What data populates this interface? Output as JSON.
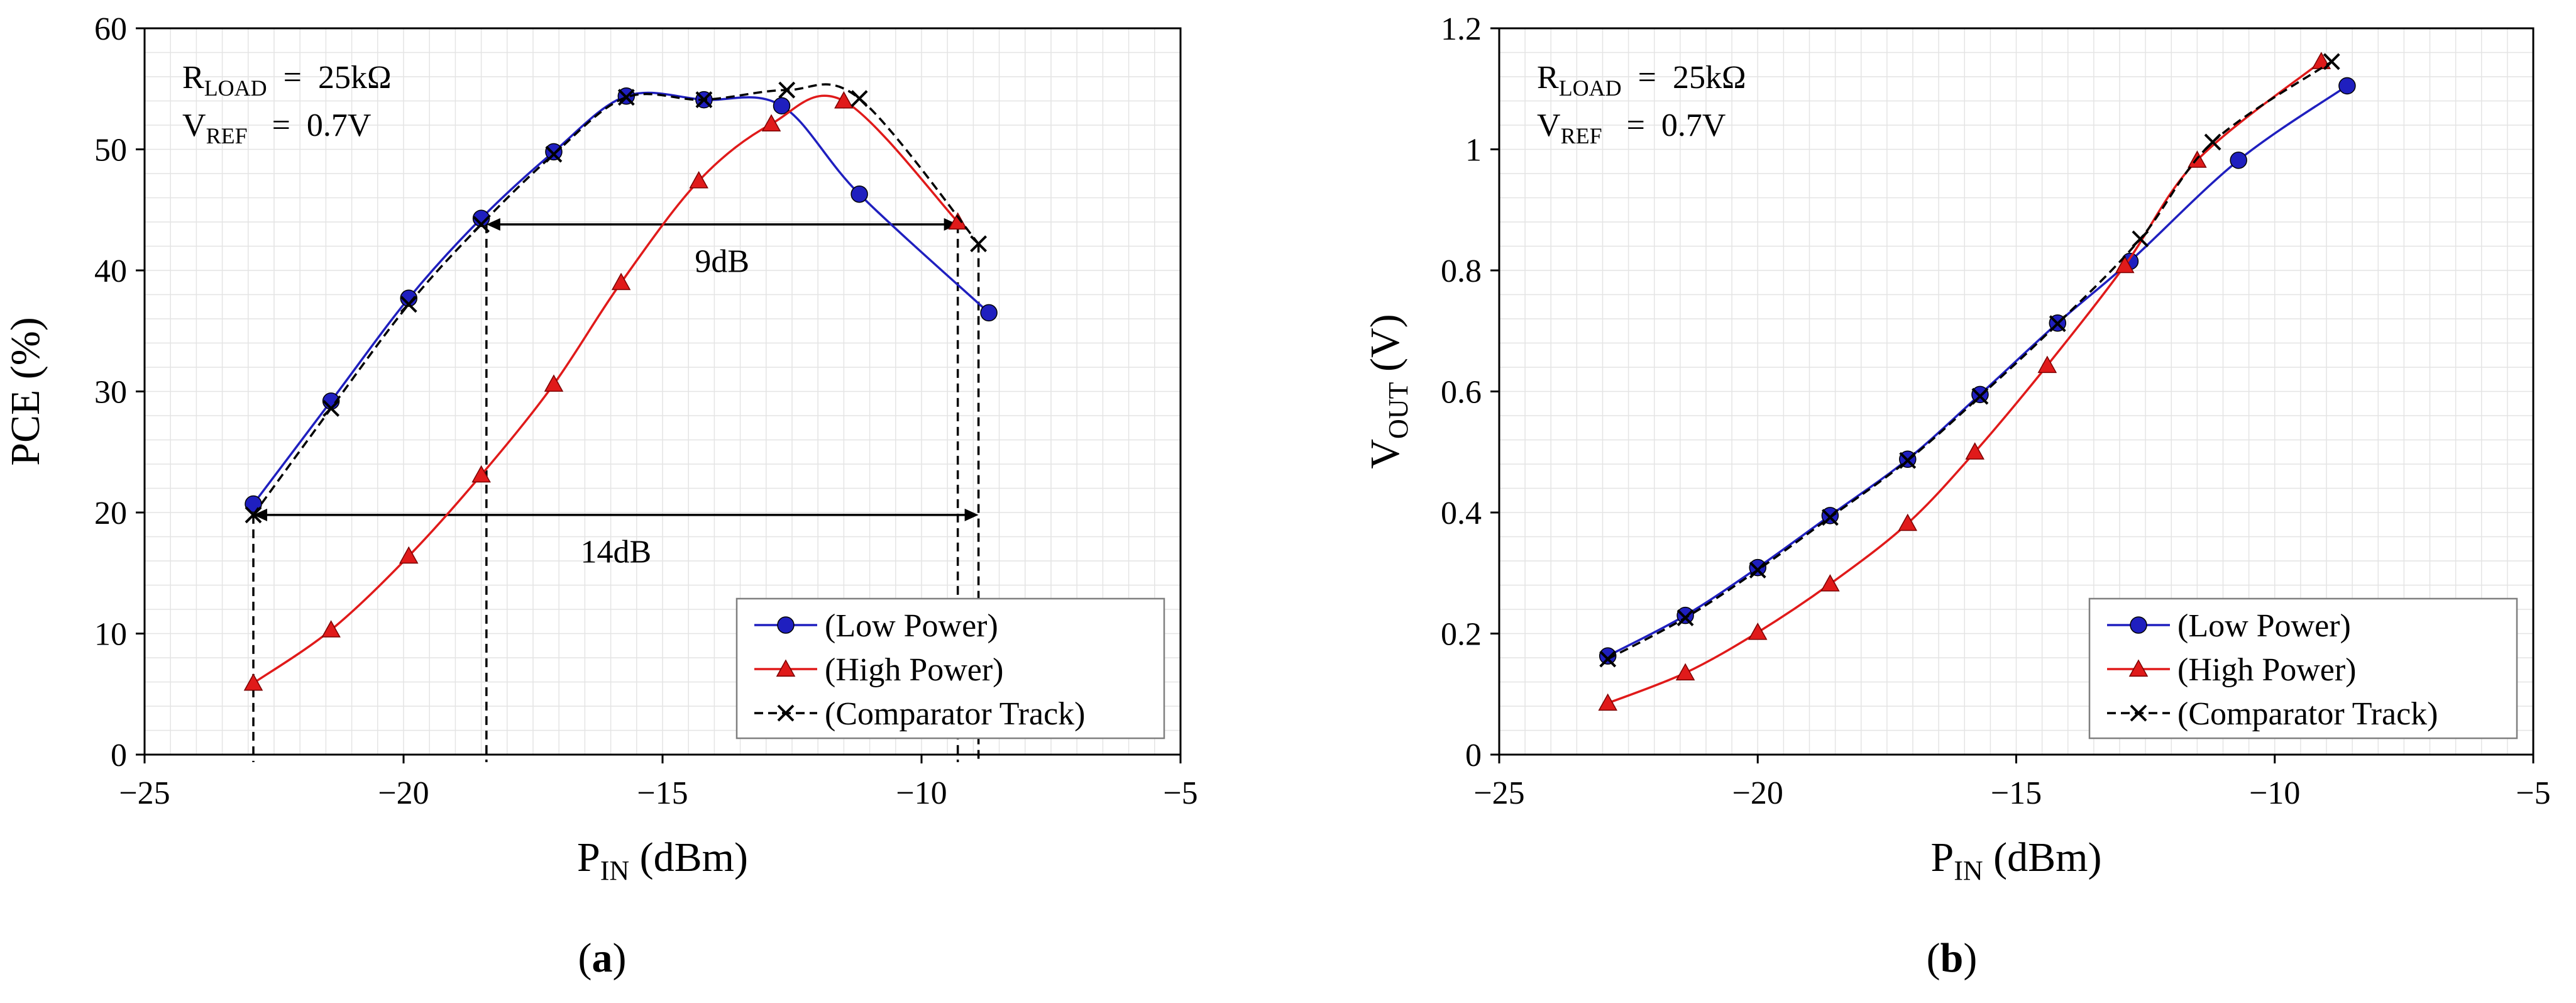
{
  "chart_data": [
    {
      "id": "a",
      "type": "line",
      "caption": {
        "open": "(",
        "letter": "a",
        "close": ")"
      },
      "xlabel": {
        "main": "P",
        "sub": "IN",
        "rest": " (dBm)"
      },
      "ylabel": "PCE (%)",
      "xlim": [
        -25,
        -5
      ],
      "ylim": [
        0,
        60
      ],
      "xticks": [
        -25,
        -20,
        -15,
        -10,
        -5
      ],
      "yticks": [
        0,
        10,
        20,
        30,
        40,
        50,
        60
      ],
      "minor_grid_x_step": 0.5,
      "minor_grid_y_step": 2,
      "notes": [
        {
          "main": "R",
          "sub": "LOAD",
          "rest": "  =  25kΩ"
        },
        {
          "main": "V",
          "sub": "REF",
          "rest": "   =  0.7V"
        }
      ],
      "series": [
        {
          "name": "(Low Power)",
          "color": "#1f1fbf",
          "marker": "circle",
          "dash": "none",
          "x": [
            -22.9,
            -21.4,
            -19.9,
            -18.5,
            -17.1,
            -15.7,
            -14.2,
            -12.7,
            -11.2,
            -8.7
          ],
          "y": [
            20.7,
            29.2,
            37.7,
            44.3,
            49.8,
            54.4,
            54.1,
            53.6,
            46.3,
            36.5
          ]
        },
        {
          "name": "(High Power)",
          "color": "#e01a1a",
          "marker": "triangle",
          "dash": "none",
          "x": [
            -22.9,
            -21.4,
            -19.9,
            -18.5,
            -17.1,
            -15.8,
            -14.3,
            -12.9,
            -11.5,
            -9.3
          ],
          "y": [
            5.9,
            10.3,
            16.4,
            23.1,
            30.6,
            39.0,
            47.4,
            52.1,
            54.0,
            44.0
          ]
        },
        {
          "name": "(Comparator Track)",
          "color": "#000000",
          "marker": "x",
          "dash": "dashed",
          "x": [
            -22.9,
            -21.4,
            -19.9,
            -18.5,
            -17.1,
            -15.7,
            -14.2,
            -12.6,
            -11.2,
            -8.9
          ],
          "y": [
            19.8,
            28.6,
            37.2,
            43.8,
            49.6,
            54.3,
            54.1,
            54.9,
            54.2,
            42.2
          ]
        }
      ],
      "dimension_lines": [
        {
          "label": "9dB",
          "x1": -18.4,
          "x2": -9.3,
          "y": 43.8,
          "label_y": 40.8
        },
        {
          "label": "14dB",
          "x1": -22.9,
          "x2": -8.9,
          "y": 19.8,
          "label_y": 16.8
        }
      ],
      "vertical_guides": [
        {
          "x": -22.9,
          "y_top": 19.8
        },
        {
          "x": -18.4,
          "y_top": 43.8
        },
        {
          "x": -9.3,
          "y_top": 43.8
        },
        {
          "x": -8.9,
          "y_top": 42.2
        }
      ],
      "legend_position": "bottom-right"
    },
    {
      "id": "b",
      "type": "line",
      "caption": {
        "open": "(",
        "letter": "b",
        "close": ")"
      },
      "xlabel": {
        "main": "P",
        "sub": "IN",
        "rest": " (dBm)"
      },
      "ylabel": {
        "main": "V",
        "sub": "OUT",
        "rest": " (V)"
      },
      "xlim": [
        -25,
        -5
      ],
      "ylim": [
        0,
        1.2
      ],
      "xticks": [
        -25,
        -20,
        -15,
        -10,
        -5
      ],
      "yticks": [
        0,
        0.2,
        0.4,
        0.6,
        0.8,
        1,
        1.2
      ],
      "minor_grid_x_step": 0.5,
      "minor_grid_y_step": 0.04,
      "notes": [
        {
          "main": "R",
          "sub": "LOAD",
          "rest": "  =  25kΩ"
        },
        {
          "main": "V",
          "sub": "REF",
          "rest": "   =  0.7V"
        }
      ],
      "series": [
        {
          "name": "(Low Power)",
          "color": "#1f1fbf",
          "marker": "circle",
          "dash": "none",
          "x": [
            -22.9,
            -21.4,
            -20.0,
            -18.6,
            -17.1,
            -15.7,
            -14.2,
            -12.8,
            -10.7,
            -8.6
          ],
          "y": [
            0.163,
            0.23,
            0.309,
            0.395,
            0.488,
            0.595,
            0.713,
            0.815,
            0.982,
            1.105
          ]
        },
        {
          "name": "(High Power)",
          "color": "#e01a1a",
          "marker": "triangle",
          "dash": "none",
          "x": [
            -22.9,
            -21.4,
            -20.0,
            -18.6,
            -17.1,
            -15.8,
            -14.4,
            -12.9,
            -11.5,
            -9.1
          ],
          "y": [
            0.085,
            0.135,
            0.202,
            0.282,
            0.382,
            0.5,
            0.643,
            0.808,
            0.982,
            1.145
          ]
        },
        {
          "name": "(Comparator Track)",
          "color": "#000000",
          "marker": "x",
          "dash": "dashed",
          "x": [
            -22.9,
            -21.4,
            -20.0,
            -18.6,
            -17.1,
            -15.7,
            -14.2,
            -12.6,
            -11.2,
            -8.9
          ],
          "y": [
            0.158,
            0.226,
            0.305,
            0.392,
            0.486,
            0.592,
            0.712,
            0.852,
            1.012,
            1.145
          ]
        }
      ],
      "dimension_lines": [],
      "vertical_guides": [],
      "legend_position": "bottom-right"
    }
  ]
}
